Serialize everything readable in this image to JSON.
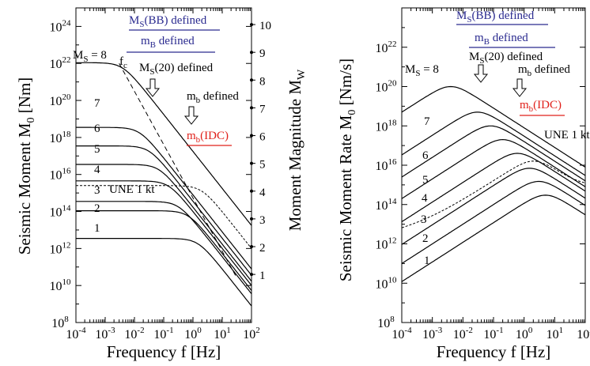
{
  "colors": {
    "curve": "#000000",
    "blue_label": "#2a2a8f",
    "red_label": "#e0201a",
    "arrow_fill": "#ffffff"
  },
  "chart_data": [
    {
      "type": "line",
      "xlabel": "Frequency f [Hz]",
      "ylabel": "Seismic Moment M0 [Nm]",
      "y2label": "Moment Magnitude MW",
      "xscale": "log",
      "yscale": "log",
      "xlim": [
        0.0001,
        100
      ],
      "ylim": [
        100000000.0,
        1e+25
      ],
      "x_tick_labels": [
        "10-4",
        "10-3",
        "10-2",
        "10-1",
        "100",
        "101",
        "102"
      ],
      "y_tick_labels": [
        "108",
        "1010",
        "1012",
        "1014",
        "1016",
        "1018",
        "1020",
        "1022",
        "1024"
      ],
      "y2_tick_labels": [
        "1",
        "2",
        "3",
        "4",
        "5",
        "6",
        "7",
        "8",
        "9",
        "10"
      ],
      "series": [
        {
          "name": "1",
          "plateau_moment": 3500000000000.0,
          "corner_frequency_hz": 1.5
        },
        {
          "name": "2",
          "plateau_moment": 110000000000000.0,
          "corner_frequency_hz": 0.7
        },
        {
          "name": "3",
          "plateau_moment": 350000000000000.0,
          "corner_frequency_hz": 0.32
        },
        {
          "name": "4",
          "plateau_moment": 4500000000000000.0,
          "corner_frequency_hz": 0.15
        },
        {
          "name": "5",
          "plateau_moment": 3.5e+16,
          "corner_frequency_hz": 0.07
        },
        {
          "name": "6",
          "plateau_moment": 3.5e+17,
          "corner_frequency_hz": 0.032
        },
        {
          "name": "7",
          "plateau_moment": 3.5e+18,
          "corner_frequency_hz": 0.015
        },
        {
          "name": "MS = 8",
          "plateau_moment": 1.1e+22,
          "corner_frequency_hz": 0.004
        }
      ],
      "corner_frequency_line": {
        "label": "fc",
        "points": [
          [
            0.003,
            1e+22
          ],
          [
            30,
            30000000000.0
          ]
        ]
      },
      "une_curve": {
        "label": "UNE 1 kt",
        "level": 2500000000000000.0,
        "knee_hz": 2
      },
      "annotations": [
        {
          "text": "MS(BB) defined",
          "color": "blue"
        },
        {
          "text": "mB defined",
          "color": "blue"
        },
        {
          "text": "MS(20) defined",
          "color": "black"
        },
        {
          "text": "mb defined",
          "color": "black"
        },
        {
          "text": "mb(IDC)",
          "color": "red"
        }
      ]
    },
    {
      "type": "line",
      "xlabel": "Frequency f [Hz]",
      "ylabel": "Seismic Moment Rate M0 [Nm/s]",
      "xscale": "log",
      "yscale": "log",
      "xlim": [
        0.0001,
        100
      ],
      "ylim": [
        100000000.0,
        1e+24
      ],
      "x_tick_labels": [
        "10-4",
        "10-3",
        "10-2",
        "10-1",
        "100",
        "101",
        "102"
      ],
      "y_tick_labels": [
        "108",
        "1010",
        "1012",
        "1014",
        "1016",
        "1018",
        "1020",
        "1022"
      ],
      "series": [
        {
          "name": "1",
          "peak_frequency_hz": 5,
          "peak_rate": 300000000000000.0
        },
        {
          "name": "2",
          "peak_frequency_hz": 3,
          "peak_rate": 1500000000000000.0
        },
        {
          "name": "3",
          "peak_frequency_hz": 1.5,
          "peak_rate": 7000000000000000.0
        },
        {
          "name": "4",
          "peak_frequency_hz": 0.6,
          "peak_rate": 4e+16
        },
        {
          "name": "5",
          "peak_frequency_hz": 0.2,
          "peak_rate": 2e+17
        },
        {
          "name": "6",
          "peak_frequency_hz": 0.08,
          "peak_rate": 1e+18
        },
        {
          "name": "7",
          "peak_frequency_hz": 0.03,
          "peak_rate": 5e+18
        },
        {
          "name": "MS = 8",
          "peak_frequency_hz": 0.004,
          "peak_rate": 1e+20
        }
      ],
      "une_curve": {
        "label": "UNE 1 kt"
      },
      "annotations": [
        {
          "text": "MS(BB) defined",
          "color": "blue"
        },
        {
          "text": "mB defined",
          "color": "blue"
        },
        {
          "text": "MS(20) defined",
          "color": "black"
        },
        {
          "text": "mb defined",
          "color": "black"
        },
        {
          "text": "mb(IDC)",
          "color": "red"
        }
      ]
    }
  ]
}
